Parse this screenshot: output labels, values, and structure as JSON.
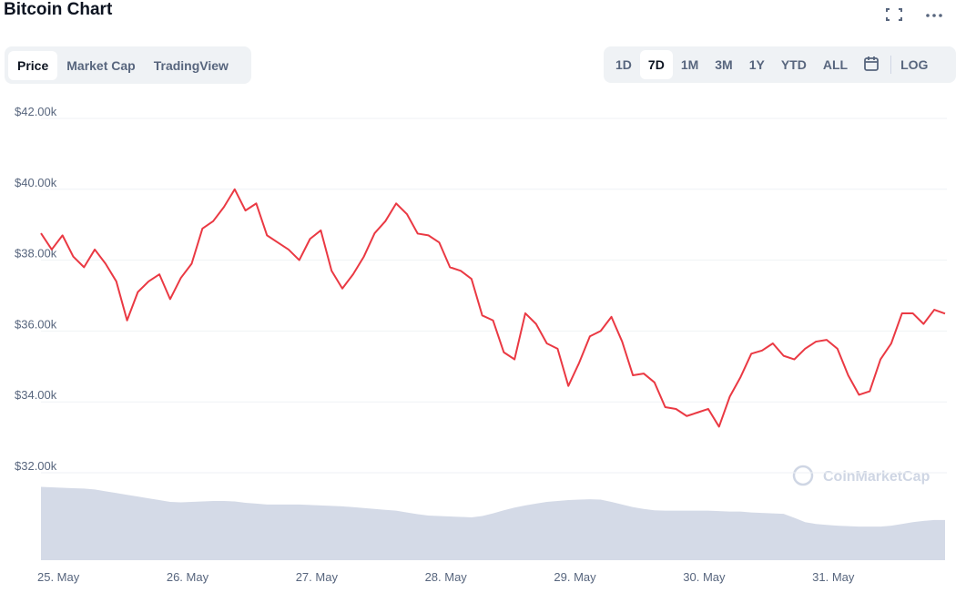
{
  "ui": {
    "title": "Bitcoin Chart",
    "tabs": [
      "Price",
      "Market Cap",
      "TradingView"
    ],
    "active_tab": 0,
    "ranges": [
      "1D",
      "7D",
      "1M",
      "3M",
      "1Y",
      "YTD",
      "ALL"
    ],
    "active_range": 1,
    "log": "LOG",
    "watermark": "CoinMarketCap"
  },
  "chart_data": {
    "type": "line",
    "categories": [
      "25. May",
      null,
      null,
      null,
      null,
      null,
      null,
      null,
      null,
      null,
      null,
      null,
      "26. May",
      null,
      null,
      null,
      null,
      null,
      null,
      null,
      null,
      null,
      null,
      null,
      "27. May",
      null,
      null,
      null,
      null,
      null,
      null,
      null,
      null,
      null,
      null,
      null,
      "28. May",
      null,
      null,
      null,
      null,
      null,
      null,
      null,
      null,
      null,
      null,
      null,
      "29. May",
      null,
      null,
      null,
      null,
      null,
      null,
      null,
      null,
      null,
      null,
      null,
      "30. May",
      null,
      null,
      null,
      null,
      null,
      null,
      null,
      null,
      null,
      null,
      null,
      "31. May",
      null,
      null,
      null,
      null,
      null,
      null,
      null,
      null,
      null,
      null,
      null,
      null
    ],
    "series": [
      {
        "name": "Price",
        "color": "#ea3943",
        "values": [
          38760,
          38300,
          38700,
          38100,
          37800,
          38300,
          37900,
          37400,
          36300,
          37100,
          37400,
          37600,
          36900,
          37500,
          37900,
          38890,
          39100,
          39500,
          40000,
          39400,
          39600,
          38700,
          38500,
          38300,
          38000,
          38600,
          38840,
          37700,
          37200,
          37600,
          38100,
          38760,
          39100,
          39600,
          39300,
          38750,
          38700,
          38500,
          37800,
          37700,
          37470,
          36440,
          36300,
          35400,
          35200,
          36500,
          36200,
          35650,
          35500,
          34450,
          35100,
          35850,
          36000,
          36400,
          35700,
          34750,
          34800,
          34550,
          33850,
          33800,
          33600,
          33700,
          33800,
          33300,
          34150,
          34700,
          35360,
          35450,
          35650,
          35300,
          35200,
          35500,
          35700,
          35750,
          35500,
          34750,
          34200,
          34300,
          35200,
          35650,
          36500,
          36500,
          36200,
          36600,
          36490
        ]
      },
      {
        "name": "Volume",
        "color": "#cfd6e4",
        "axis": "y2",
        "values": [
          16.6,
          16.5,
          16.4,
          16.3,
          16.2,
          16.0,
          15.6,
          15.2,
          14.8,
          14.4,
          14.0,
          13.6,
          13.2,
          13.1,
          13.2,
          13.3,
          13.4,
          13.4,
          13.3,
          13.0,
          12.8,
          12.6,
          12.6,
          12.6,
          12.6,
          12.5,
          12.4,
          12.3,
          12.2,
          12.0,
          11.8,
          11.6,
          11.4,
          11.2,
          10.8,
          10.4,
          10.1,
          10.0,
          9.9,
          9.8,
          9.7,
          10.0,
          10.6,
          11.3,
          11.9,
          12.4,
          12.8,
          13.2,
          13.4,
          13.6,
          13.7,
          13.8,
          13.7,
          13.2,
          12.6,
          12.0,
          11.6,
          11.3,
          11.2,
          11.2,
          11.2,
          11.2,
          11.2,
          11.1,
          11.0,
          11.0,
          10.8,
          10.7,
          10.6,
          10.5,
          9.6,
          8.6,
          8.2,
          8.0,
          7.8,
          7.7,
          7.6,
          7.6,
          7.6,
          7.8,
          8.2,
          8.6,
          8.9,
          9.1,
          9.1
        ]
      }
    ],
    "ylim": [
      32000,
      42000
    ],
    "yticks": [
      {
        "value": 32000,
        "label": "$32.00k"
      },
      {
        "value": 34000,
        "label": "$34.00k"
      },
      {
        "value": 36000,
        "label": "$36.00k"
      },
      {
        "value": 38000,
        "label": "$38.00k"
      },
      {
        "value": 40000,
        "label": "$40.00k"
      },
      {
        "value": 42000,
        "label": "$42.00k"
      }
    ],
    "y2lim": [
      0,
      100
    ],
    "grid": true
  }
}
